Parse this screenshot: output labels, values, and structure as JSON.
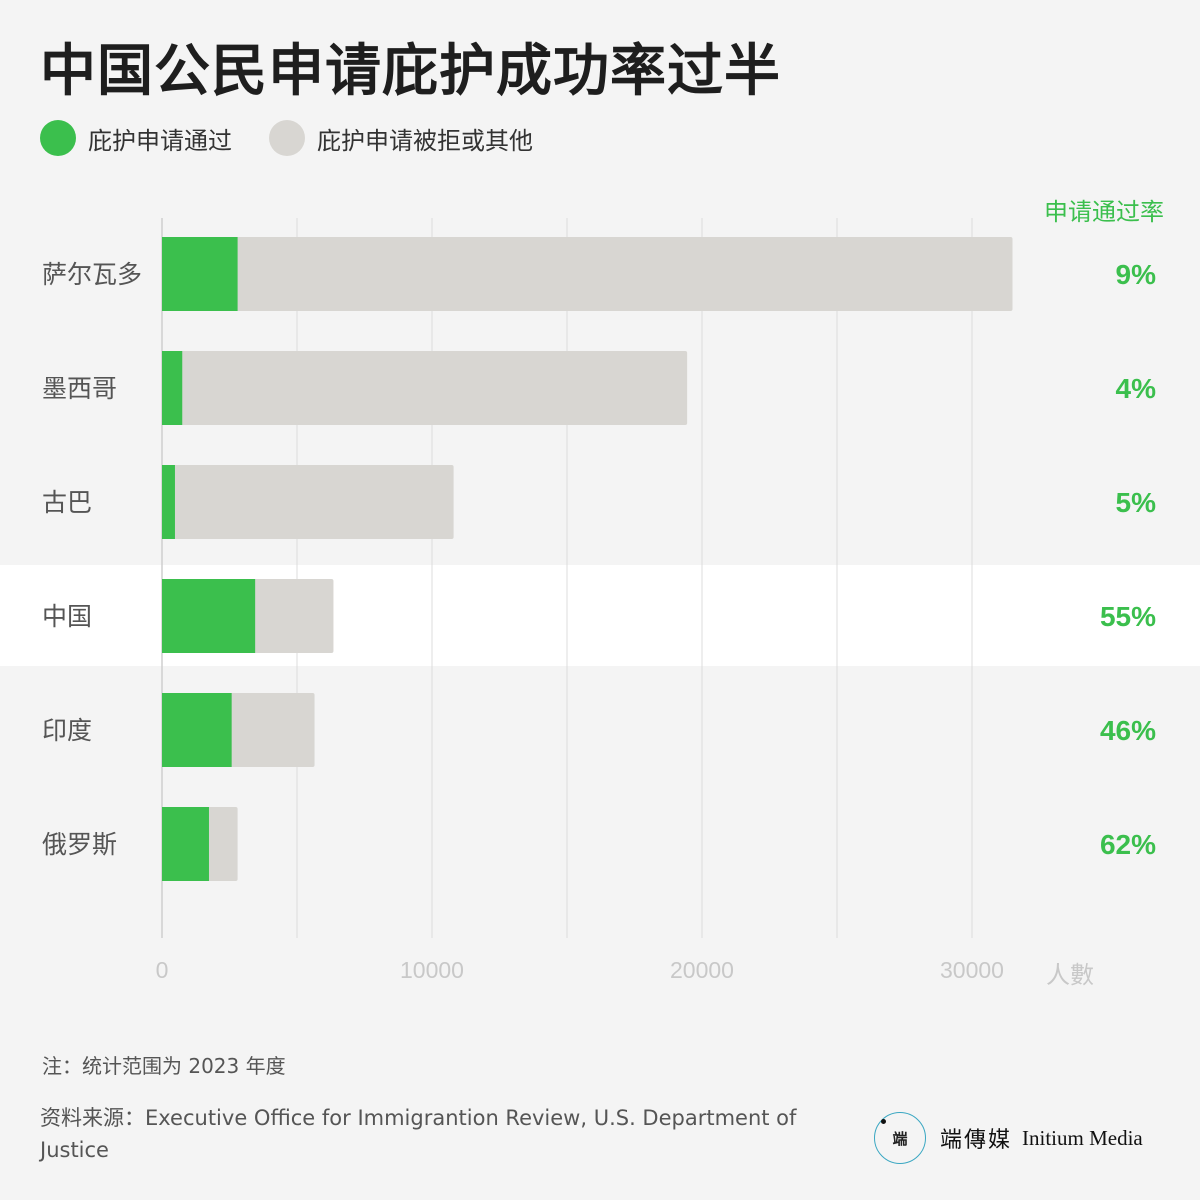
{
  "title": "中国公民申请庇护成功率过半",
  "legend": [
    {
      "label": "庇护申请通过",
      "color": "#3bbf4d"
    },
    {
      "label": "庇护申请被拒或其他",
      "color": "#d8d6d2"
    }
  ],
  "rate_header": "申请通过率",
  "unit_label": "人數",
  "note": "注：统计范围为 2023 年度",
  "source": "资料来源：Executive Office for Immigrantion Review, U.S. Department of Justice",
  "logo": {
    "mark": "端",
    "name_zh": "端傳媒",
    "name_en": "Initium Media"
  },
  "colors": {
    "approved": "#3bbf4d",
    "rejected": "#d8d6d2",
    "highlight_row": "#ffffff",
    "rate_text": "#3bbf4d"
  },
  "chart_data": {
    "type": "bar",
    "orientation": "horizontal",
    "stacked": true,
    "categories": [
      "萨尔瓦多",
      "墨西哥",
      "古巴",
      "中国",
      "印度",
      "俄罗斯"
    ],
    "series": [
      {
        "name": "庇护申请通过",
        "values": [
          2800,
          750,
          480,
          3450,
          2580,
          1740
        ]
      },
      {
        "name": "庇护申请被拒或其他",
        "values": [
          28700,
          18700,
          10320,
          2900,
          3070,
          1060
        ]
      }
    ],
    "rates": [
      "9%",
      "4%",
      "5%",
      "55%",
      "46%",
      "62%"
    ],
    "highlight_category": "中国",
    "x_ticks": [
      0,
      10000,
      20000,
      30000
    ],
    "x_tick_labels": [
      "0",
      "10000",
      "20000",
      "30000"
    ],
    "xlim": [
      0,
      30000
    ],
    "xlabel": "人數",
    "grid": true
  }
}
